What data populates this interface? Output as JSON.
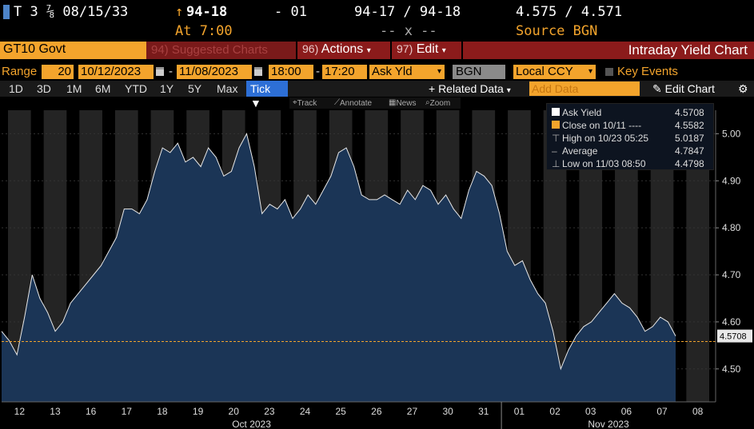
{
  "quote": {
    "symbol": "T 3 ⅞ 08/15/33",
    "arrow": "↑",
    "last": "94-18",
    "change": "- 01",
    "bid_ask": "94-17 / 94-18",
    "yields": "4.575 / 4.571",
    "time": "At 7:00",
    "bid_ask_size": "-- x --",
    "source": "Source BGN"
  },
  "header": {
    "ticker": "GT10 Govt",
    "suggested_num": "94)",
    "suggested": "Suggested Charts",
    "actions_num": "96)",
    "actions": "Actions",
    "edit_num": "97)",
    "edit": "Edit",
    "title": "Intraday Yield Chart"
  },
  "range": {
    "label": "Range",
    "days": "20",
    "start": "10/12/2023",
    "end": "11/08/2023",
    "time_from": "18:00",
    "time_to": "17:20",
    "field": "Ask Yld",
    "source": "BGN",
    "currency": "Local CCY",
    "key_events": "Key Events"
  },
  "toolbar": {
    "periods": [
      "1D",
      "3D",
      "1M",
      "6M",
      "YTD",
      "1Y",
      "5Y",
      "Max"
    ],
    "tick": "Tick ▼",
    "related": "+ Related Data",
    "add_data": "Add Data",
    "edit_chart": "Edit Chart",
    "track": "Track",
    "annotate": "Annotate",
    "news": "News",
    "zoom": "Zoom"
  },
  "legend": {
    "items": [
      {
        "label": "Ask Yield",
        "value": "4.5708"
      },
      {
        "label": "Close on 10/11 ---- ",
        "value": "4.5582"
      },
      {
        "label": "High on 10/23 05:25",
        "value": "5.0187"
      },
      {
        "label": "Average",
        "value": "4.7847"
      },
      {
        "label": "Low on 11/03 08:50",
        "value": "4.4798"
      }
    ]
  },
  "colors": {
    "accent": "#f3a42c",
    "header_red": "#8b1b1b",
    "area_fill": "#1b3556",
    "session_bg": "#242424"
  },
  "chart_data": {
    "type": "area",
    "ylim": [
      4.43,
      5.05
    ],
    "yticks": [
      "4.50",
      "4.60",
      "4.70",
      "4.80",
      "4.90",
      "5.00"
    ],
    "last_label": "4.5708",
    "prev_close": 4.5582,
    "day_labels": [
      "12",
      "13",
      "16",
      "17",
      "18",
      "19",
      "20",
      "23",
      "24",
      "25",
      "26",
      "27",
      "30",
      "31",
      "01",
      "02",
      "03",
      "06",
      "07",
      "08"
    ],
    "month_labels": [
      "Oct 2023",
      "Nov 2023"
    ],
    "series": [
      {
        "name": "Ask Yield",
        "values": [
          4.58,
          4.56,
          4.53,
          4.61,
          4.7,
          4.65,
          4.62,
          4.58,
          4.6,
          4.64,
          4.66,
          4.68,
          4.7,
          4.72,
          4.75,
          4.78,
          4.84,
          4.84,
          4.83,
          4.86,
          4.92,
          4.97,
          4.96,
          4.98,
          4.94,
          4.95,
          4.93,
          4.97,
          4.95,
          4.91,
          4.92,
          4.97,
          5.0,
          4.93,
          4.83,
          4.85,
          4.84,
          4.86,
          4.82,
          4.84,
          4.87,
          4.85,
          4.88,
          4.91,
          4.96,
          4.97,
          4.93,
          4.87,
          4.86,
          4.86,
          4.87,
          4.86,
          4.85,
          4.88,
          4.86,
          4.89,
          4.88,
          4.85,
          4.87,
          4.84,
          4.82,
          4.88,
          4.92,
          4.91,
          4.89,
          4.83,
          4.75,
          4.72,
          4.73,
          4.69,
          4.66,
          4.64,
          4.58,
          4.5,
          4.54,
          4.57,
          4.59,
          4.6,
          4.62,
          4.64,
          4.66,
          4.64,
          4.63,
          4.61,
          4.58,
          4.59,
          4.61,
          4.6,
          4.57
        ]
      }
    ]
  }
}
